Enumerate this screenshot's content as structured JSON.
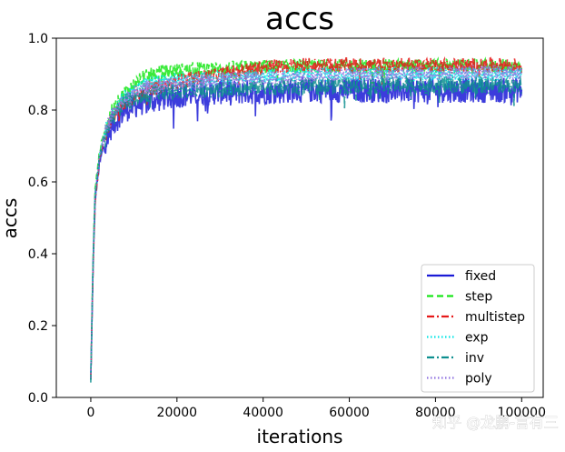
{
  "chart_data": {
    "type": "line",
    "title": "accs",
    "xlabel": "iterations",
    "ylabel": "accs",
    "xlim": [
      -8000,
      105000
    ],
    "ylim": [
      0.0,
      1.0
    ],
    "xticks": [
      0,
      20000,
      40000,
      60000,
      80000,
      100000
    ],
    "yticks": [
      0.0,
      0.2,
      0.4,
      0.6,
      0.8,
      1.0
    ],
    "xtick_labels": [
      "0",
      "20000",
      "40000",
      "60000",
      "80000",
      "100000"
    ],
    "ytick_labels": [
      "0.0",
      "0.2",
      "0.4",
      "0.6",
      "0.8",
      "1.0"
    ],
    "grid": false,
    "legend_position": "lower-right",
    "series": [
      {
        "name": "fixed",
        "color": "#1a1ad6",
        "dash": "solid",
        "x": [
          0,
          500,
          1000,
          2000,
          3000,
          5000,
          8000,
          12000,
          16000,
          20000,
          30000,
          40000,
          50000,
          60000,
          70000,
          80000,
          90000,
          100000
        ],
        "y": [
          0.05,
          0.35,
          0.55,
          0.65,
          0.7,
          0.76,
          0.8,
          0.82,
          0.83,
          0.84,
          0.85,
          0.85,
          0.855,
          0.855,
          0.855,
          0.855,
          0.855,
          0.855
        ],
        "spread": 0.035
      },
      {
        "name": "step",
        "color": "#19e619",
        "dash": "dashed",
        "x": [
          0,
          500,
          1000,
          2000,
          3000,
          5000,
          8000,
          12000,
          16000,
          20000,
          25000,
          30000,
          40000,
          50000,
          60000,
          70000,
          80000,
          90000,
          100000
        ],
        "y": [
          0.05,
          0.38,
          0.58,
          0.68,
          0.74,
          0.8,
          0.85,
          0.89,
          0.905,
          0.91,
          0.915,
          0.915,
          0.92,
          0.922,
          0.922,
          0.922,
          0.922,
          0.922,
          0.922
        ],
        "spread": 0.02
      },
      {
        "name": "multistep",
        "color": "#e61919",
        "dash": "dashdot",
        "x": [
          0,
          500,
          1000,
          2000,
          3000,
          5000,
          8000,
          12000,
          16000,
          20000,
          30000,
          40000,
          50000,
          60000,
          70000,
          80000,
          90000,
          100000
        ],
        "y": [
          0.05,
          0.34,
          0.54,
          0.66,
          0.72,
          0.78,
          0.82,
          0.85,
          0.865,
          0.88,
          0.9,
          0.92,
          0.925,
          0.925,
          0.925,
          0.925,
          0.925,
          0.925
        ],
        "spread": 0.02
      },
      {
        "name": "exp",
        "color": "#00e5e5",
        "dash": "dotted",
        "x": [
          0,
          500,
          1000,
          2000,
          3000,
          5000,
          8000,
          12000,
          16000,
          20000,
          30000,
          40000,
          50000,
          60000,
          70000,
          80000,
          90000,
          100000
        ],
        "y": [
          0.05,
          0.36,
          0.56,
          0.67,
          0.73,
          0.79,
          0.84,
          0.87,
          0.88,
          0.885,
          0.89,
          0.895,
          0.9,
          0.9,
          0.9,
          0.9,
          0.9,
          0.9
        ],
        "spread": 0.02
      },
      {
        "name": "inv",
        "color": "#0e8f8f",
        "dash": "dashdot",
        "x": [
          0,
          500,
          1000,
          2000,
          3000,
          5000,
          8000,
          12000,
          16000,
          20000,
          30000,
          40000,
          50000,
          60000,
          70000,
          80000,
          90000,
          100000
        ],
        "y": [
          0.05,
          0.36,
          0.56,
          0.67,
          0.72,
          0.78,
          0.82,
          0.84,
          0.85,
          0.855,
          0.86,
          0.865,
          0.865,
          0.87,
          0.87,
          0.87,
          0.87,
          0.87
        ],
        "spread": 0.025
      },
      {
        "name": "poly",
        "color": "#8f72e0",
        "dash": "dotted",
        "x": [
          0,
          500,
          1000,
          2000,
          3000,
          5000,
          8000,
          12000,
          16000,
          20000,
          30000,
          40000,
          50000,
          60000,
          70000,
          80000,
          90000,
          100000
        ],
        "y": [
          0.05,
          0.37,
          0.57,
          0.67,
          0.73,
          0.79,
          0.83,
          0.86,
          0.87,
          0.875,
          0.885,
          0.89,
          0.895,
          0.9,
          0.9,
          0.905,
          0.905,
          0.905
        ],
        "spread": 0.02
      }
    ]
  },
  "watermark": "知乎 @龙鹏-言有三"
}
